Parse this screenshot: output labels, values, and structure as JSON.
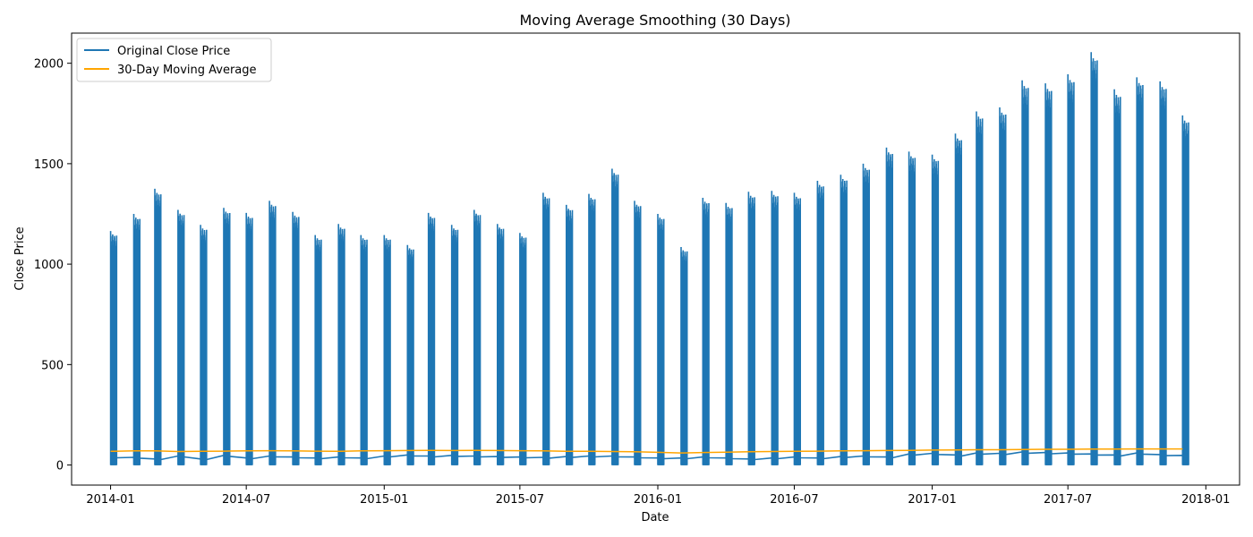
{
  "chart_data": {
    "type": "line",
    "title": "Moving Average Smoothing (30 Days)",
    "xlabel": "Date",
    "ylabel": "Close Price",
    "x_axis": "date",
    "xlim": [
      "2013-11-10",
      "2018-02-15"
    ],
    "ylim": [
      -100,
      2150
    ],
    "x_ticks": [
      "2014-01",
      "2014-07",
      "2015-01",
      "2015-07",
      "2016-01",
      "2016-07",
      "2017-01",
      "2017-07",
      "2018-01"
    ],
    "y_ticks": [
      0,
      500,
      1000,
      1500,
      2000
    ],
    "grid": false,
    "legend_position": "top-left",
    "series": [
      {
        "name": "Original Close Price",
        "color": "#1f77b4",
        "style": "repeated monthly bursts: each month the close price spans from near 0 up to the monthly peak value",
        "burst_low": 0,
        "month_starts": [
          "2014-01",
          "2014-02",
          "2014-03",
          "2014-04",
          "2014-05",
          "2014-06",
          "2014-07",
          "2014-08",
          "2014-09",
          "2014-10",
          "2014-11",
          "2014-12",
          "2015-01",
          "2015-02",
          "2015-03",
          "2015-04",
          "2015-05",
          "2015-06",
          "2015-07",
          "2015-08",
          "2015-09",
          "2015-10",
          "2015-11",
          "2015-12",
          "2016-01",
          "2016-02",
          "2016-03",
          "2016-04",
          "2016-05",
          "2016-06",
          "2016-07",
          "2016-08",
          "2016-09",
          "2016-10",
          "2016-11",
          "2016-12",
          "2017-01",
          "2017-02",
          "2017-03",
          "2017-04",
          "2017-05",
          "2017-06",
          "2017-07",
          "2017-08",
          "2017-09",
          "2017-10",
          "2017-11",
          "2017-12"
        ],
        "monthly_peak": [
          1165,
          1250,
          1375,
          1270,
          1195,
          1280,
          1255,
          1315,
          1260,
          1145,
          1200,
          1145,
          1145,
          1095,
          1255,
          1195,
          1270,
          1200,
          1155,
          1355,
          1295,
          1350,
          1475,
          1315,
          1250,
          1085,
          1330,
          1305,
          1360,
          1365,
          1355,
          1415,
          1445,
          1500,
          1580,
          1560,
          1545,
          1650,
          1760,
          1780,
          1915,
          1900,
          1945,
          2055,
          1870,
          1930,
          1910,
          1740
        ],
        "baseline_low": [
          40,
          38,
          30,
          45,
          30,
          48,
          35,
          45,
          40,
          35,
          40,
          35,
          45,
          50,
          45,
          48,
          45,
          42,
          40,
          38,
          42,
          45,
          45,
          40,
          35,
          35,
          40,
          35,
          30,
          35,
          40,
          35,
          42,
          45,
          40,
          55,
          58,
          50,
          60,
          58,
          65,
          62,
          60,
          55,
          50,
          60,
          52,
          48
        ]
      },
      {
        "name": "30-Day Moving Average",
        "color": "#ffa500",
        "style": "moving-average line with a filled band at the start of each month",
        "x": [
          "2014-01",
          "2014-02",
          "2014-03",
          "2014-04",
          "2014-05",
          "2014-06",
          "2014-07",
          "2014-08",
          "2014-09",
          "2014-10",
          "2014-11",
          "2014-12",
          "2015-01",
          "2015-02",
          "2015-03",
          "2015-04",
          "2015-05",
          "2015-06",
          "2015-07",
          "2015-08",
          "2015-09",
          "2015-10",
          "2015-11",
          "2015-12",
          "2016-01",
          "2016-02",
          "2016-03",
          "2016-04",
          "2016-05",
          "2016-06",
          "2016-07",
          "2016-08",
          "2016-09",
          "2016-10",
          "2016-11",
          "2016-12",
          "2017-01",
          "2017-02",
          "2017-03",
          "2017-04",
          "2017-05",
          "2017-06",
          "2017-07",
          "2017-08",
          "2017-09",
          "2017-10",
          "2017-11",
          "2017-12"
        ],
        "values": [
          68,
          70,
          70,
          67,
          68,
          69,
          70,
          71,
          70,
          69,
          68,
          70,
          71,
          72,
          73,
          72,
          73,
          72,
          71,
          70,
          68,
          68,
          67,
          66,
          63,
          60,
          62,
          64,
          66,
          67,
          68,
          69,
          70,
          71,
          72,
          73,
          74,
          75,
          76,
          76,
          77,
          78,
          78,
          79,
          79,
          80,
          80,
          80
        ],
        "band_peak": [
          125,
          128,
          135,
          128,
          125,
          130,
          130,
          130,
          128,
          125,
          130,
          128,
          118,
          122,
          125,
          128,
          128,
          128,
          130,
          135,
          130,
          128,
          140,
          140,
          135,
          122,
          128,
          140,
          142,
          145,
          145,
          150,
          148,
          148,
          142,
          148,
          148,
          150,
          155,
          155,
          158,
          160,
          158,
          160,
          160,
          165,
          175,
          182
        ]
      }
    ]
  }
}
